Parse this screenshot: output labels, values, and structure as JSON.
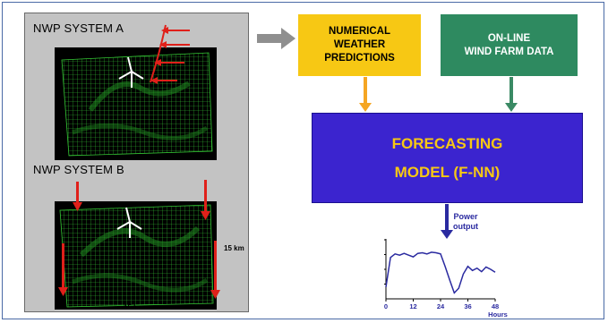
{
  "system_a": {
    "label": "NWP SYSTEM A"
  },
  "system_b": {
    "label": "NWP SYSTEM B",
    "scale_y": "15 km",
    "scale_x": "15 km"
  },
  "nwp_box": {
    "line1": "NUMERICAL",
    "line2": "WEATHER",
    "line3": "PREDICTIONS",
    "color": "#f7c814"
  },
  "online_box": {
    "line1": "ON-LINE",
    "line2": "WIND FARM DATA",
    "color": "#2e8a60"
  },
  "model_box": {
    "line1": "FORECASTING",
    "line2": "MODEL (F-NN)",
    "color": "#3b24cf",
    "text_color": "#f7c814"
  },
  "power": {
    "line1": "Power",
    "line2": "output"
  },
  "chart_data": {
    "type": "line",
    "x": [
      0,
      2,
      4,
      6,
      8,
      10,
      12,
      14,
      16,
      18,
      20,
      22,
      24,
      26,
      28,
      30,
      32,
      34,
      36,
      38,
      40,
      42,
      44,
      46,
      48
    ],
    "values": [
      0.2,
      0.7,
      0.76,
      0.74,
      0.77,
      0.74,
      0.71,
      0.77,
      0.78,
      0.76,
      0.79,
      0.78,
      0.76,
      0.55,
      0.32,
      0.1,
      0.18,
      0.42,
      0.55,
      0.48,
      0.52,
      0.46,
      0.54,
      0.5,
      0.45
    ],
    "x_ticks": [
      "0",
      "12",
      "24",
      "36",
      "48"
    ],
    "xlabel": "Hours",
    "xlim": [
      0,
      48
    ],
    "ylim": [
      0,
      1
    ],
    "line_color": "#2a2aa0"
  }
}
